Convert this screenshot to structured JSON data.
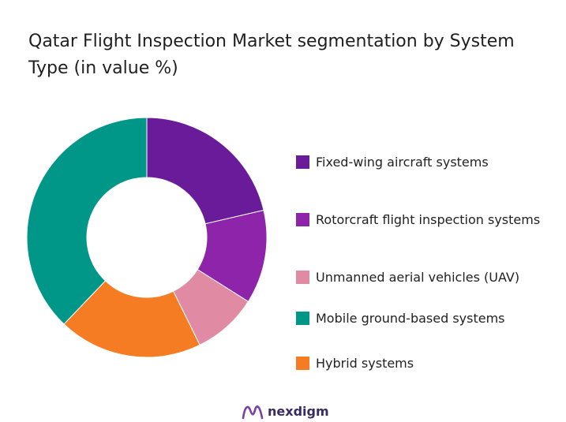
{
  "chart_data": {
    "type": "pie",
    "style": "donut",
    "title": "Qatar Flight Inspection Market segmentation by System Type (in value %)",
    "categories": [
      "Fixed-wing aircraft systems",
      "Rotorcraft flight inspection systems",
      "Unmanned aerial vehicles (UAV)",
      "Mobile ground-based systems",
      "Hybrid systems"
    ],
    "values": [
      22,
      13,
      9,
      39,
      20
    ],
    "draw_order": [
      0,
      1,
      2,
      4,
      3
    ],
    "colors": [
      "#6a1b9a",
      "#8e24aa",
      "#e08aa3",
      "#009688",
      "#f57c22"
    ],
    "legend_position": "right"
  },
  "brand": {
    "name": "nexdigm",
    "color": "#3a2c63",
    "mark_color": "#7a3fa0"
  }
}
